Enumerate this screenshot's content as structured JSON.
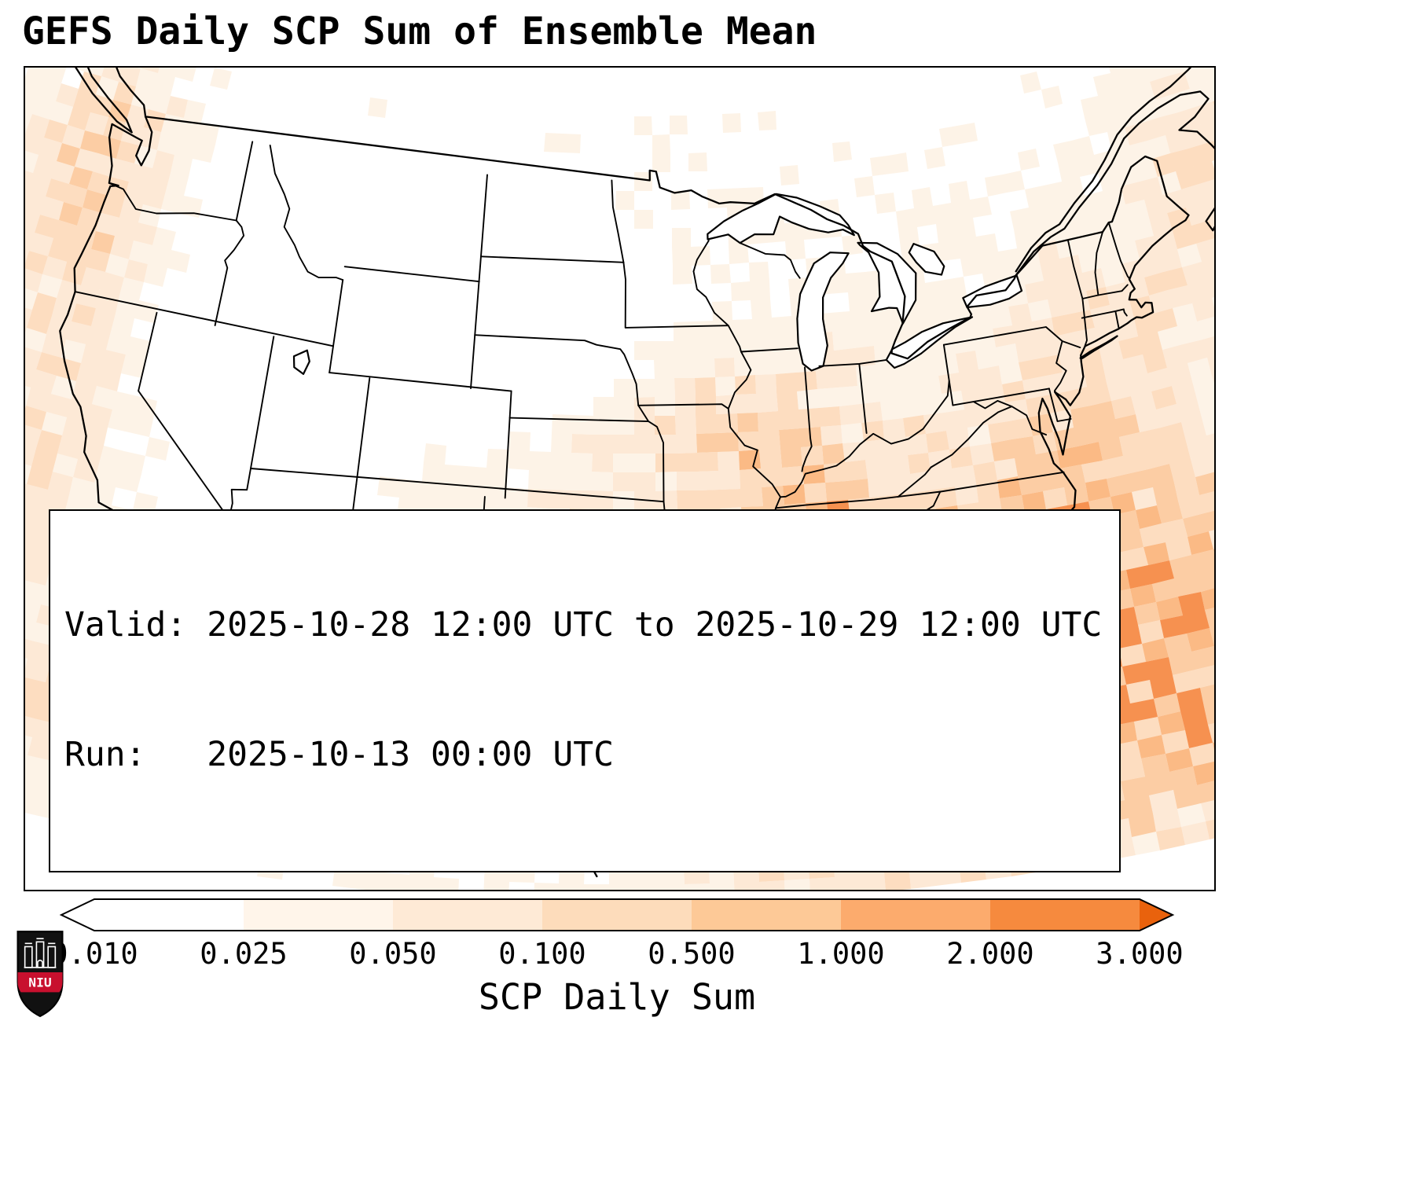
{
  "title": "GEFS Daily SCP Sum of Ensemble Mean",
  "info_box": {
    "line1": "Valid: 2025-10-28 12:00 UTC to 2025-10-29 12:00 UTC",
    "line2": "Run:   2025-10-13 00:00 UTC"
  },
  "colorbar": {
    "label": "SCP Daily Sum",
    "tick_labels": [
      "0.010",
      "0.025",
      "0.050",
      "0.100",
      "0.500",
      "1.000",
      "2.000",
      "3.000"
    ],
    "segments": [
      "#ffffff",
      "#fff5ea",
      "#feead6",
      "#fddcbb",
      "#fdc997",
      "#fcab6d",
      "#f68a3e"
    ],
    "under_color": "#ffffff",
    "over_color": "#e9620d",
    "outline_color": "#000000"
  },
  "map": {
    "background": "#ffffff",
    "land_outline_color": "#000000",
    "secondary_outline_color": "#a6a6a6",
    "heat_levels": [
      "#fdf3e7",
      "#fde9d6",
      "#fdddc0",
      "#fccda4",
      "#fbba85",
      "#f69150"
    ]
  },
  "logo": {
    "text": "NIU",
    "band_color": "#c8102e",
    "shield_color": "#111111"
  }
}
